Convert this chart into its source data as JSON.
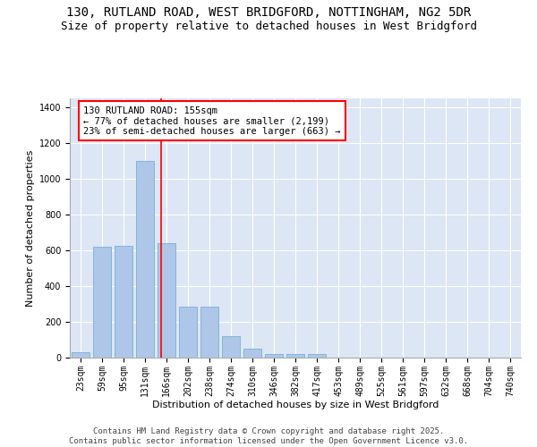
{
  "title_line1": "130, RUTLAND ROAD, WEST BRIDGFORD, NOTTINGHAM, NG2 5DR",
  "title_line2": "Size of property relative to detached houses in West Bridgford",
  "xlabel": "Distribution of detached houses by size in West Bridgford",
  "ylabel": "Number of detached properties",
  "categories": [
    "23sqm",
    "59sqm",
    "95sqm",
    "131sqm",
    "166sqm",
    "202sqm",
    "238sqm",
    "274sqm",
    "310sqm",
    "346sqm",
    "382sqm",
    "417sqm",
    "453sqm",
    "489sqm",
    "525sqm",
    "561sqm",
    "597sqm",
    "632sqm",
    "668sqm",
    "704sqm",
    "740sqm"
  ],
  "values": [
    30,
    620,
    625,
    1100,
    640,
    285,
    285,
    120,
    50,
    22,
    18,
    22,
    0,
    0,
    0,
    0,
    0,
    0,
    0,
    0,
    0
  ],
  "bar_color": "#aec6e8",
  "bar_edge_color": "#7aafd4",
  "background_color": "#dce6f5",
  "grid_color": "#ffffff",
  "vline_x": 3.77,
  "vline_color": "red",
  "annotation_text": "130 RUTLAND ROAD: 155sqm\n← 77% of detached houses are smaller (2,199)\n23% of semi-detached houses are larger (663) →",
  "annotation_box_color": "white",
  "annotation_box_edge_color": "red",
  "ylim": [
    0,
    1450
  ],
  "yticks": [
    0,
    200,
    400,
    600,
    800,
    1000,
    1200,
    1400
  ],
  "footer_line1": "Contains HM Land Registry data © Crown copyright and database right 2025.",
  "footer_line2": "Contains public sector information licensed under the Open Government Licence v3.0.",
  "title_fontsize": 10,
  "subtitle_fontsize": 9,
  "axis_label_fontsize": 8,
  "tick_fontsize": 7,
  "annotation_fontsize": 7.5,
  "footer_fontsize": 6.5
}
